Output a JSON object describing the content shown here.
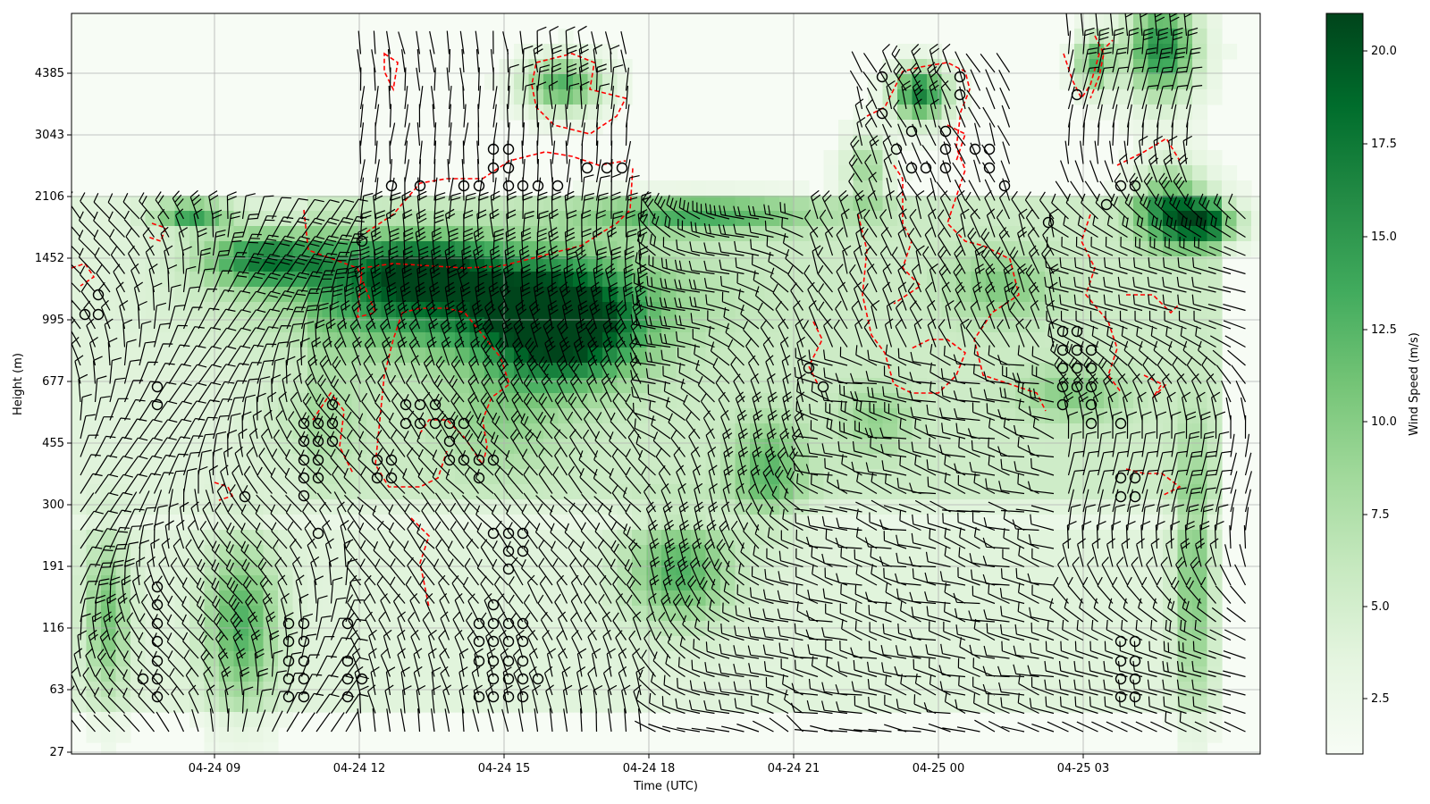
{
  "chart_data": {
    "type": "heatmap",
    "title": "",
    "xlabel": "Time (UTC)",
    "ylabel": "Height (m)",
    "x_ticks": [
      "04-24 09",
      "04-24 12",
      "04-24 15",
      "04-24 18",
      "04-24 21",
      "04-25 00",
      "04-25 03"
    ],
    "y_ticks": [
      "27",
      "63",
      "116",
      "191",
      "300",
      "455",
      "677",
      "995",
      "1452",
      "2106",
      "3043",
      "4385"
    ],
    "xlim": [
      "04-24 06:00",
      "04-25 05:45"
    ],
    "colorbar": {
      "label": "Wind Speed (m/s)",
      "ticks": [
        "2.5",
        "5.0",
        "7.5",
        "10.0",
        "12.5",
        "15.0",
        "17.5",
        "20.0"
      ],
      "range": [
        1,
        21
      ],
      "colormap": "Greens"
    },
    "grid": true,
    "overlays": [
      "wind barbs",
      "calm-wind circles",
      "red dashed contour"
    ],
    "colors": {
      "contour": "#ff0000",
      "barb": "#000000",
      "grid": "#b0b0b0"
    }
  }
}
